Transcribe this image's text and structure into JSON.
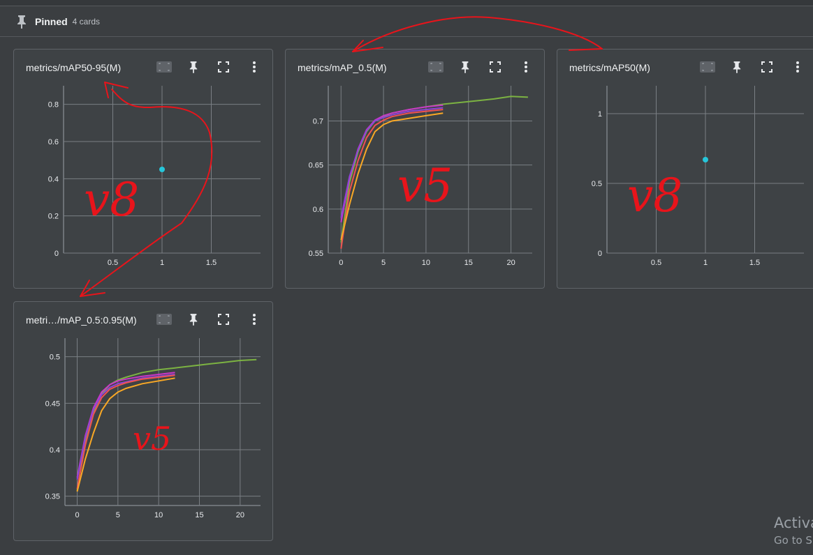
{
  "header": {
    "title": "Pinned",
    "count": "4 cards"
  },
  "cards": [
    {
      "title": "metrics/mAP50-95(M)"
    },
    {
      "title": "metrics/mAP_0.5(M)"
    },
    {
      "title": "metrics/mAP50(M)"
    },
    {
      "title": "metri…/mAP_0.5:0.95(M)"
    }
  ],
  "watermark": {
    "line1": "Activa",
    "line2": "Go to S"
  },
  "colors": {
    "green": "#7cb342",
    "orange": "#f9a825",
    "magenta": "#c837c8",
    "purple": "#8e44d6",
    "red_orange": "#ef5350",
    "point": "#26c6da",
    "annotation": "#e8141b"
  },
  "chart_data": [
    {
      "type": "scatter",
      "title": "metrics/mAP50-95(M)",
      "xlim": [
        0,
        2
      ],
      "ylim": [
        0,
        0.9
      ],
      "xticks": [
        "0.5",
        "1",
        "1.5"
      ],
      "yticks": [
        "0.8",
        "0.6",
        "0.4",
        "0.2",
        "0"
      ],
      "points": [
        {
          "x": 1,
          "y": 0.45
        }
      ],
      "annotation": "v8"
    },
    {
      "type": "line",
      "title": "metrics/mAP_0.5(M)",
      "xlim": [
        -1.5,
        22.5
      ],
      "ylim": [
        0.55,
        0.74
      ],
      "xticks": [
        "0",
        "5",
        "10",
        "15",
        "20"
      ],
      "yticks": [
        "0.7",
        "0.65",
        "0.6",
        "0.55"
      ],
      "series": [
        {
          "color": "#7cb342",
          "x": [
            0,
            1,
            2,
            3,
            4,
            5,
            6,
            8,
            10,
            12,
            14,
            16,
            18,
            20,
            22
          ],
          "y": [
            0.562,
            0.63,
            0.665,
            0.688,
            0.7,
            0.705,
            0.709,
            0.713,
            0.716,
            0.719,
            0.721,
            0.723,
            0.725,
            0.728,
            0.727
          ]
        },
        {
          "color": "#c837c8",
          "x": [
            0,
            1,
            2,
            3,
            4,
            5,
            6,
            8,
            10,
            12
          ],
          "y": [
            0.585,
            0.635,
            0.668,
            0.69,
            0.701,
            0.706,
            0.709,
            0.713,
            0.716,
            0.718
          ]
        },
        {
          "color": "#8e44d6",
          "x": [
            0,
            1,
            2,
            3,
            4,
            5,
            6,
            8,
            10,
            12
          ],
          "y": [
            0.59,
            0.637,
            0.667,
            0.689,
            0.7,
            0.704,
            0.707,
            0.711,
            0.713,
            0.715
          ]
        },
        {
          "color": "#ef5350",
          "x": [
            0,
            1,
            2,
            3,
            4,
            5,
            6,
            8,
            10,
            12
          ],
          "y": [
            0.555,
            0.62,
            0.655,
            0.681,
            0.695,
            0.701,
            0.705,
            0.709,
            0.711,
            0.713
          ]
        },
        {
          "color": "#f9a825",
          "x": [
            0,
            1,
            2,
            3,
            4,
            5,
            6,
            8,
            10,
            12
          ],
          "y": [
            0.565,
            0.605,
            0.64,
            0.668,
            0.688,
            0.696,
            0.7,
            0.703,
            0.706,
            0.709
          ]
        }
      ],
      "annotation": "v5"
    },
    {
      "type": "scatter",
      "title": "metrics/mAP50(M)",
      "xlim": [
        0,
        2
      ],
      "ylim": [
        0,
        1.2
      ],
      "xticks": [
        "0.5",
        "1",
        "1.5"
      ],
      "yticks": [
        "1",
        "0.5",
        "0"
      ],
      "points": [
        {
          "x": 1,
          "y": 0.67
        }
      ],
      "annotation": "v8"
    },
    {
      "type": "line",
      "title": "metri…/mAP_0.5:0.95(M)",
      "xlim": [
        -1.5,
        22.5
      ],
      "ylim": [
        0.34,
        0.52
      ],
      "xticks": [
        "0",
        "5",
        "10",
        "15",
        "20"
      ],
      "yticks": [
        "0.5",
        "0.45",
        "0.4",
        "0.35"
      ],
      "series": [
        {
          "color": "#7cb342",
          "x": [
            0,
            1,
            2,
            3,
            4,
            5,
            6,
            8,
            10,
            12,
            14,
            16,
            18,
            20,
            22
          ],
          "y": [
            0.356,
            0.41,
            0.44,
            0.46,
            0.47,
            0.475,
            0.478,
            0.483,
            0.486,
            0.488,
            0.49,
            0.492,
            0.494,
            0.496,
            0.497
          ]
        },
        {
          "color": "#c837c8",
          "x": [
            0,
            1,
            2,
            3,
            4,
            5,
            6,
            8,
            10,
            12
          ],
          "y": [
            0.37,
            0.415,
            0.445,
            0.462,
            0.47,
            0.474,
            0.476,
            0.479,
            0.481,
            0.483
          ]
        },
        {
          "color": "#8e44d6",
          "x": [
            0,
            1,
            2,
            3,
            4,
            5,
            6,
            8,
            10,
            12
          ],
          "y": [
            0.368,
            0.413,
            0.443,
            0.459,
            0.467,
            0.471,
            0.473,
            0.477,
            0.479,
            0.481
          ]
        },
        {
          "color": "#ef5350",
          "x": [
            0,
            1,
            2,
            3,
            4,
            5,
            6,
            8,
            10,
            12
          ],
          "y": [
            0.358,
            0.405,
            0.438,
            0.456,
            0.465,
            0.469,
            0.472,
            0.476,
            0.478,
            0.48
          ]
        },
        {
          "color": "#f9a825",
          "x": [
            0,
            1,
            2,
            3,
            4,
            5,
            6,
            8,
            10,
            12
          ],
          "y": [
            0.355,
            0.39,
            0.418,
            0.442,
            0.455,
            0.462,
            0.466,
            0.471,
            0.474,
            0.477
          ]
        }
      ],
      "annotation": "v5"
    }
  ]
}
